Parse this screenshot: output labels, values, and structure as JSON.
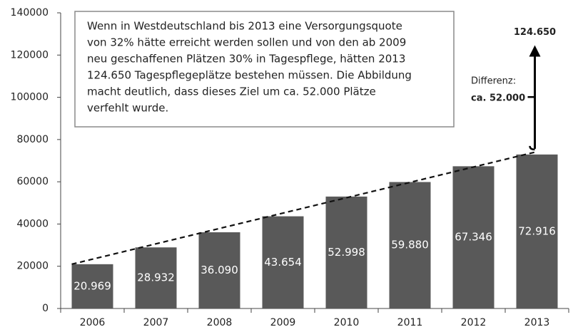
{
  "chart_data": {
    "type": "bar",
    "categories": [
      "2006",
      "2007",
      "2008",
      "2009",
      "2010",
      "2011",
      "2012",
      "2013"
    ],
    "values": [
      20969,
      28932,
      36090,
      43654,
      52998,
      59880,
      67346,
      72916
    ],
    "value_labels": [
      "20.969",
      "28.932",
      "36.090",
      "43.654",
      "52.998",
      "59.880",
      "67.346",
      "72.916"
    ],
    "color": "#595959",
    "ylim": [
      0,
      140000
    ],
    "yticks": [
      0,
      20000,
      40000,
      60000,
      80000,
      100000,
      120000,
      140000
    ],
    "note": [
      "Wenn in Westdeutschland bis 2013 eine Versorgungsquote",
      "von 32% hätte erreicht werden sollen und von den ab 2009",
      "neu geschaffenen Plätzen 30% in Tagespflege, hätten 2013",
      "124.650 Tagespflegeplätze bestehen müssen. Die Abbildung",
      "macht deutlich, dass dieses Ziel um ca. 52.000 Plätze",
      "verfehlt wurde."
    ],
    "target": {
      "value": 124650,
      "label": "124.650"
    },
    "difference_label": [
      "Differenz:",
      "ca. 52.000"
    ]
  }
}
